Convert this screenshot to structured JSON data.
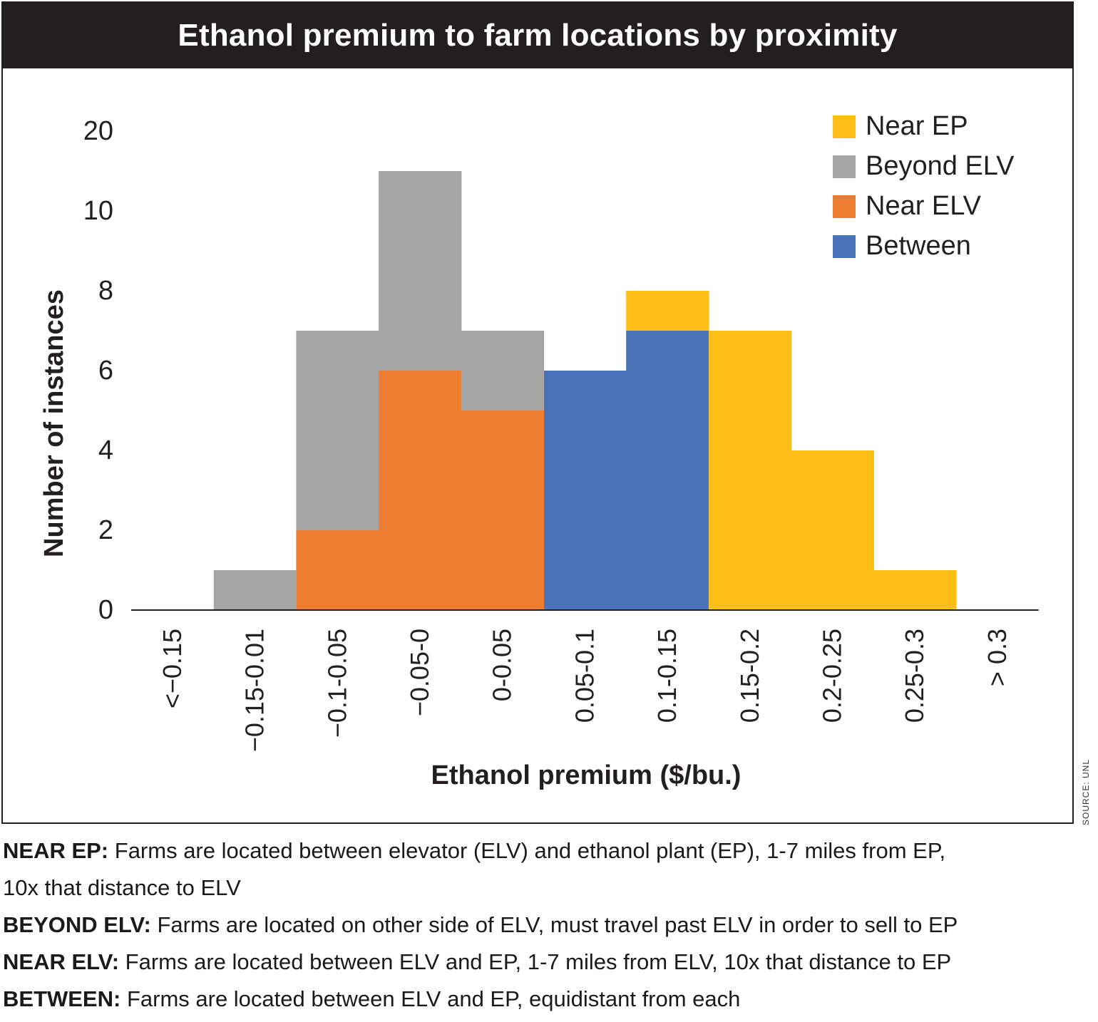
{
  "chart_data": {
    "type": "bar",
    "stacked": true,
    "title": "Ethanol premium to farm locations by proximity",
    "xlabel": "Ethanol premium ($/bu.)",
    "ylabel": "Number of instances",
    "categories": [
      "<−0.15",
      "−0.15-0.01",
      "−0.1-0.05",
      "−0.05-0",
      "0-0.05",
      "0.05-0.1",
      "0.1-0.15",
      "0.15-0.2",
      "0.2-0.25",
      "0.25-0.3",
      "> 0.3"
    ],
    "y_tick_labels": [
      "0",
      "2",
      "4",
      "6",
      "8",
      "10",
      "20"
    ],
    "series": [
      {
        "name": "Between",
        "color": "#4a72b8",
        "values": [
          0,
          0,
          0,
          0,
          0,
          6,
          7,
          0,
          0,
          0,
          0
        ]
      },
      {
        "name": "Near ELV",
        "color": "#ed7d31",
        "values": [
          0,
          0,
          2,
          6,
          5,
          0,
          0,
          0,
          0,
          0,
          0
        ]
      },
      {
        "name": "Beyond ELV",
        "color": "#a5a5a5",
        "values": [
          0,
          1,
          5,
          5,
          2,
          0,
          0,
          0,
          0,
          0,
          0
        ]
      },
      {
        "name": "Near EP",
        "color": "#fdbf15",
        "values": [
          0,
          0,
          0,
          0,
          0,
          0,
          1,
          7,
          4,
          1,
          0
        ]
      }
    ],
    "legend_order": [
      "Near EP",
      "Beyond ELV",
      "Near ELV",
      "Between"
    ],
    "legend_position": "top-right",
    "grid": false
  },
  "source": "SOURCE: UNL",
  "notes": [
    {
      "key": "NEAR EP:",
      "text": " Farms are located between elevator (ELV) and ethanol plant (EP), 1-7 miles from EP,"
    },
    {
      "key": "",
      "text": "10x that distance to ELV"
    },
    {
      "key": "BEYOND ELV:",
      "text": " Farms are located on other side of ELV, must travel past ELV in order to sell to EP"
    },
    {
      "key": "NEAR ELV:",
      "text": " Farms are located between ELV and EP, 1-7 miles from ELV, 10x that distance to EP"
    },
    {
      "key": "BETWEEN:",
      "text": " Farms are located between ELV and EP, equidistant from each"
    }
  ]
}
